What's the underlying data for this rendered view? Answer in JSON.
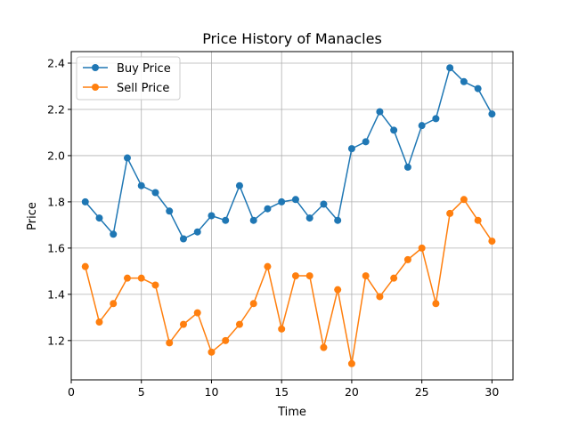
{
  "chart_data": {
    "type": "line",
    "title": "Price History of Manacles",
    "xlabel": "Time",
    "ylabel": "Price",
    "xlim": [
      0,
      31.5
    ],
    "ylim": [
      1.03,
      2.45
    ],
    "xticks": [
      0,
      5,
      10,
      15,
      20,
      25,
      30
    ],
    "yticks": [
      1.2,
      1.4,
      1.6,
      1.8,
      2.0,
      2.2,
      2.4
    ],
    "ytick_labels": [
      "1.2",
      "1.4",
      "1.6",
      "1.8",
      "2.0",
      "2.2",
      "2.4"
    ],
    "grid": true,
    "legend_position": "upper-left",
    "x": [
      1,
      2,
      3,
      4,
      5,
      6,
      7,
      8,
      9,
      10,
      11,
      12,
      13,
      14,
      15,
      16,
      17,
      18,
      19,
      20,
      21,
      22,
      23,
      24,
      25,
      26,
      27,
      28,
      29,
      30
    ],
    "series": [
      {
        "name": "Buy Price",
        "color": "#1f77b4",
        "values": [
          1.8,
          1.73,
          1.66,
          1.99,
          1.87,
          1.84,
          1.76,
          1.64,
          1.67,
          1.74,
          1.72,
          1.87,
          1.72,
          1.77,
          1.8,
          1.81,
          1.73,
          1.79,
          1.72,
          2.03,
          2.06,
          2.19,
          2.11,
          1.95,
          2.13,
          2.16,
          2.38,
          2.32,
          2.29,
          2.18
        ]
      },
      {
        "name": "Sell Price",
        "color": "#ff7f0e",
        "values": [
          1.52,
          1.28,
          1.36,
          1.47,
          1.47,
          1.44,
          1.19,
          1.27,
          1.32,
          1.15,
          1.2,
          1.27,
          1.36,
          1.52,
          1.25,
          1.48,
          1.48,
          1.17,
          1.42,
          1.1,
          1.48,
          1.39,
          1.47,
          1.55,
          1.6,
          1.36,
          1.75,
          1.81,
          1.72,
          1.63
        ]
      }
    ]
  }
}
